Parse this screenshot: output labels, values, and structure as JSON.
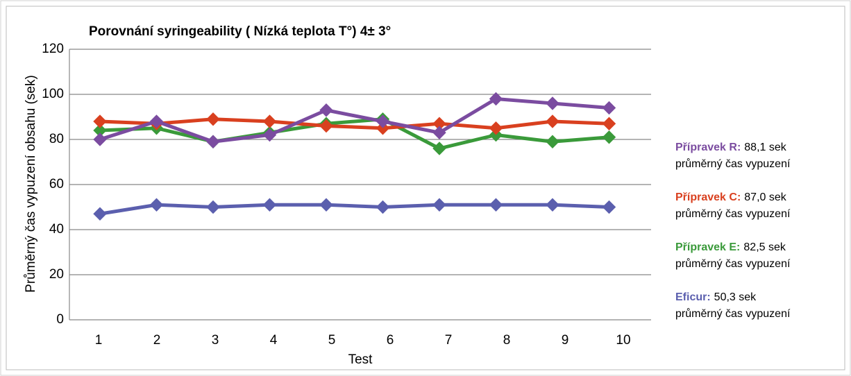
{
  "chart_data": {
    "type": "line",
    "title": "Porovnání syringeability ( Nízká teplota T°)  4± 3°",
    "xlabel": "Test",
    "ylabel": "Průměrný čas vypuzení obsahu (sek)",
    "categories": [
      "1",
      "2",
      "3",
      "4",
      "5",
      "6",
      "7",
      "8",
      "9",
      "10"
    ],
    "ylim": [
      0,
      120
    ],
    "yticks": [
      0,
      20,
      40,
      60,
      80,
      100,
      120
    ],
    "grid": true,
    "series": [
      {
        "name": "Eficur:",
        "color": "#5b5fae",
        "values": [
          47,
          51,
          50,
          51,
          51,
          50,
          51,
          51,
          51,
          50
        ],
        "summary": "50,3 sek",
        "note": "průměrný čas vypuzení"
      },
      {
        "name": "Přípravek E:",
        "color": "#3a9a3a",
        "values": [
          84,
          85,
          79,
          83,
          87,
          89,
          76,
          82,
          79,
          81
        ],
        "summary": "82,5 sek",
        "note": "průměrný čas vypuzení"
      },
      {
        "name": "Přípravek C:",
        "color": "#d9401f",
        "values": [
          88,
          87,
          89,
          88,
          86,
          85,
          87,
          85,
          88,
          87
        ],
        "summary": "87,0 sek",
        "note": "průměrný čas vypuzení"
      },
      {
        "name": "Přípravek R:",
        "color": "#7b4ca0",
        "values": [
          80,
          88,
          79,
          82,
          93,
          88,
          83,
          98,
          96,
          94
        ],
        "summary": "88,1 sek",
        "note": "průměrný čas vypuzení"
      }
    ]
  }
}
